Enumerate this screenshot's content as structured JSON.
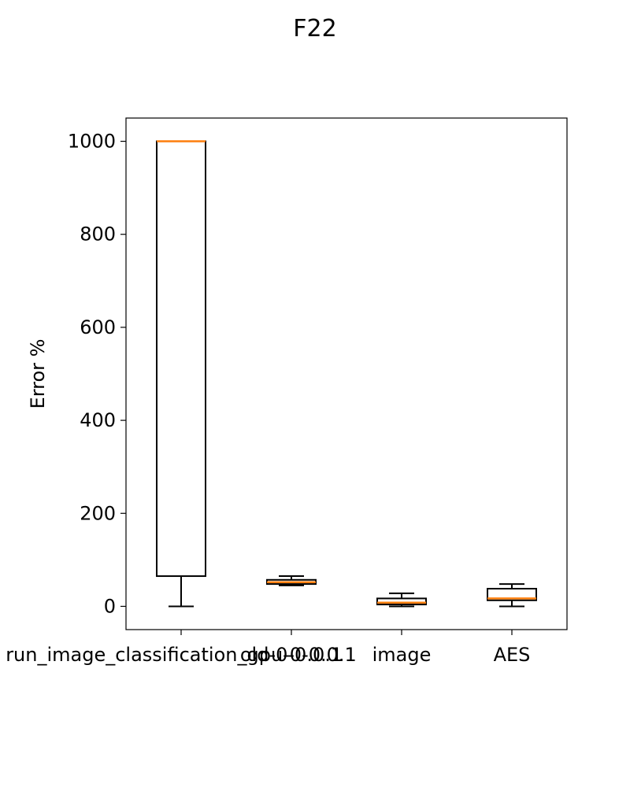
{
  "chart_data": {
    "type": "box",
    "title": "F22",
    "xlabel": "",
    "ylabel": "Error %",
    "ylim": [
      -50,
      1050
    ],
    "yticks": [
      0,
      200,
      400,
      600,
      800,
      1000
    ],
    "categories": [
      "run_image_classification_gpu-0-0.0.1",
      "old-0-0.0.1",
      "image",
      "AES"
    ],
    "boxes": [
      {
        "category": "run_image_classification_gpu-0-0.0.1",
        "whisker_low": 0,
        "q1": 65,
        "median": 1000,
        "q3": 1000,
        "whisker_high": 1000
      },
      {
        "category": "old-0-0.0.1",
        "whisker_low": 45,
        "q1": 48,
        "median": 52,
        "q3": 57,
        "whisker_high": 65
      },
      {
        "category": "image",
        "whisker_low": 0,
        "q1": 4,
        "median": 8,
        "q3": 17,
        "whisker_high": 28
      },
      {
        "category": "AES",
        "whisker_low": 0,
        "q1": 13,
        "median": 17,
        "q3": 38,
        "whisker_high": 48
      }
    ],
    "grid": false,
    "legend": "none",
    "colors": {
      "box": "#000000",
      "median": "#ff7f0e"
    }
  }
}
